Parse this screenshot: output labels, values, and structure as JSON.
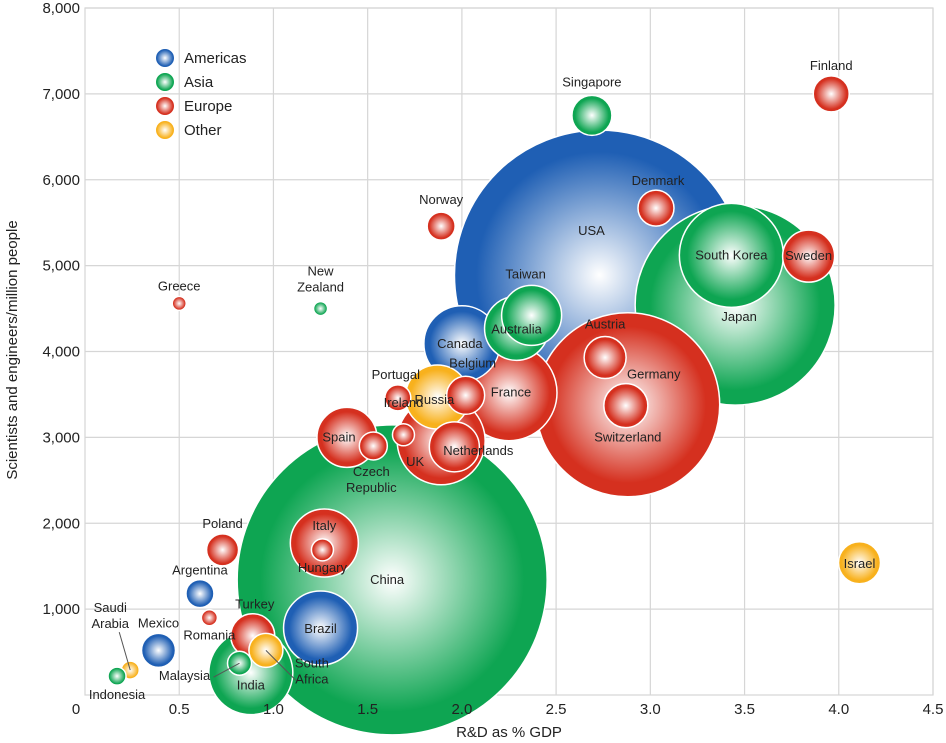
{
  "chart_data": {
    "type": "scatter",
    "subtype": "bubble",
    "title": "",
    "xlabel": "R&D as % GDP",
    "ylabel": "Scientists and engineers/million people",
    "xlim": [
      0,
      4.5
    ],
    "ylim": [
      0,
      8000
    ],
    "x_ticks": [
      0.5,
      1.0,
      1.5,
      2.0,
      2.5,
      3.0,
      3.5,
      4.0,
      4.5
    ],
    "x_tick_labels": [
      "0.5",
      "1.0",
      "1.5",
      "2.0",
      "2.5",
      "3.0",
      "3.5",
      "4.0",
      "4.5"
    ],
    "y_ticks": [
      1000,
      2000,
      3000,
      4000,
      5000,
      6000,
      7000,
      8000
    ],
    "y_tick_labels": [
      "1,000",
      "2,000",
      "3,000",
      "4,000",
      "5,000",
      "6,000",
      "7,000",
      "8,000"
    ],
    "origin_label": "0",
    "grid": true,
    "legend_position": "top-left",
    "size_encoding": "relative bubble size (unlabeled)",
    "legend": [
      {
        "name": "Americas",
        "color": "#1f5fb4"
      },
      {
        "name": "Asia",
        "color": "#0ea552"
      },
      {
        "name": "Europe",
        "color": "#d5301f"
      },
      {
        "name": "Other",
        "color": "#f8b11d"
      }
    ],
    "points": [
      {
        "label": "USA",
        "region": "Americas",
        "x": 2.73,
        "y": 4890,
        "size": 145
      },
      {
        "label": "China",
        "region": "Asia",
        "x": 1.63,
        "y": 1340,
        "size": 155
      },
      {
        "label": "Japan",
        "region": "Asia",
        "x": 3.45,
        "y": 4540,
        "size": 100
      },
      {
        "label": "Germany",
        "region": "Europe",
        "x": 2.88,
        "y": 3380,
        "size": 92
      },
      {
        "label": "South Korea",
        "region": "Asia",
        "x": 3.43,
        "y": 5120,
        "size": 52
      },
      {
        "label": "France",
        "region": "Europe",
        "x": 2.25,
        "y": 3520,
        "size": 48
      },
      {
        "label": "UK",
        "region": "Europe",
        "x": 1.89,
        "y": 2960,
        "size": 44
      },
      {
        "label": "India",
        "region": "Asia",
        "x": 0.88,
        "y": 260,
        "size": 42
      },
      {
        "label": "Canada",
        "region": "Americas",
        "x": 2.0,
        "y": 4090,
        "size": 38
      },
      {
        "label": "Brazil",
        "region": "Americas",
        "x": 1.25,
        "y": 780,
        "size": 37
      },
      {
        "label": "Italy",
        "region": "Europe",
        "x": 1.27,
        "y": 1770,
        "size": 34
      },
      {
        "label": "Russia",
        "region": "Other",
        "x": 1.87,
        "y": 3470,
        "size": 32
      },
      {
        "label": "Taiwan",
        "region": "Asia",
        "x": 2.37,
        "y": 4420,
        "size": 30
      },
      {
        "label": "Australia",
        "region": "Asia",
        "x": 2.29,
        "y": 4270,
        "size": 32
      },
      {
        "label": "Spain",
        "region": "Europe",
        "x": 1.39,
        "y": 3000,
        "size": 30
      },
      {
        "label": "Sweden",
        "region": "Europe",
        "x": 3.84,
        "y": 5110,
        "size": 26
      },
      {
        "label": "Netherlands",
        "region": "Europe",
        "x": 1.96,
        "y": 2890,
        "size": 25
      },
      {
        "label": "Turkey",
        "region": "Europe",
        "x": 0.89,
        "y": 690,
        "size": 22
      },
      {
        "label": "Switzerland",
        "region": "Europe",
        "x": 2.87,
        "y": 3370,
        "size": 22
      },
      {
        "label": "Austria",
        "region": "Europe",
        "x": 2.76,
        "y": 3930,
        "size": 21
      },
      {
        "label": "Israel",
        "region": "Other",
        "x": 4.11,
        "y": 1540,
        "size": 21
      },
      {
        "label": "Singapore",
        "region": "Asia",
        "x": 2.69,
        "y": 6750,
        "size": 20
      },
      {
        "label": "Belgium",
        "region": "Europe",
        "x": 2.02,
        "y": 3490,
        "size": 19
      },
      {
        "label": "Denmark",
        "region": "Europe",
        "x": 3.03,
        "y": 5670,
        "size": 18
      },
      {
        "label": "Finland",
        "region": "Europe",
        "x": 3.96,
        "y": 7000,
        "size": 18
      },
      {
        "label": "South Africa",
        "region": "Other",
        "x": 0.96,
        "y": 520,
        "size": 17
      },
      {
        "label": "Mexico",
        "region": "Americas",
        "x": 0.39,
        "y": 520,
        "size": 17
      },
      {
        "label": "Poland",
        "region": "Europe",
        "x": 0.73,
        "y": 1690,
        "size": 16
      },
      {
        "label": "Argentina",
        "region": "Americas",
        "x": 0.61,
        "y": 1180,
        "size": 14
      },
      {
        "label": "Norway",
        "region": "Europe",
        "x": 1.89,
        "y": 5460,
        "size": 14
      },
      {
        "label": "Czech Republic",
        "region": "Europe",
        "x": 1.53,
        "y": 2900,
        "size": 14
      },
      {
        "label": "Portugal",
        "region": "Europe",
        "x": 1.66,
        "y": 3460,
        "size": 13
      },
      {
        "label": "Malaysia",
        "region": "Asia",
        "x": 0.82,
        "y": 370,
        "size": 12
      },
      {
        "label": "Ireland",
        "region": "Europe",
        "x": 1.69,
        "y": 3030,
        "size": 11
      },
      {
        "label": "Hungary",
        "region": "Europe",
        "x": 1.26,
        "y": 1690,
        "size": 11
      },
      {
        "label": "Saudi Arabia",
        "region": "Other",
        "x": 0.24,
        "y": 290,
        "size": 9
      },
      {
        "label": "Indonesia",
        "region": "Asia",
        "x": 0.17,
        "y": 220,
        "size": 9
      },
      {
        "label": "Romania",
        "region": "Europe",
        "x": 0.66,
        "y": 900,
        "size": 8
      },
      {
        "label": "Greece",
        "region": "Europe",
        "x": 0.5,
        "y": 4560,
        "size": 7
      },
      {
        "label": "New Zealand",
        "region": "Asia",
        "x": 1.25,
        "y": 4500,
        "size": 7
      }
    ]
  }
}
